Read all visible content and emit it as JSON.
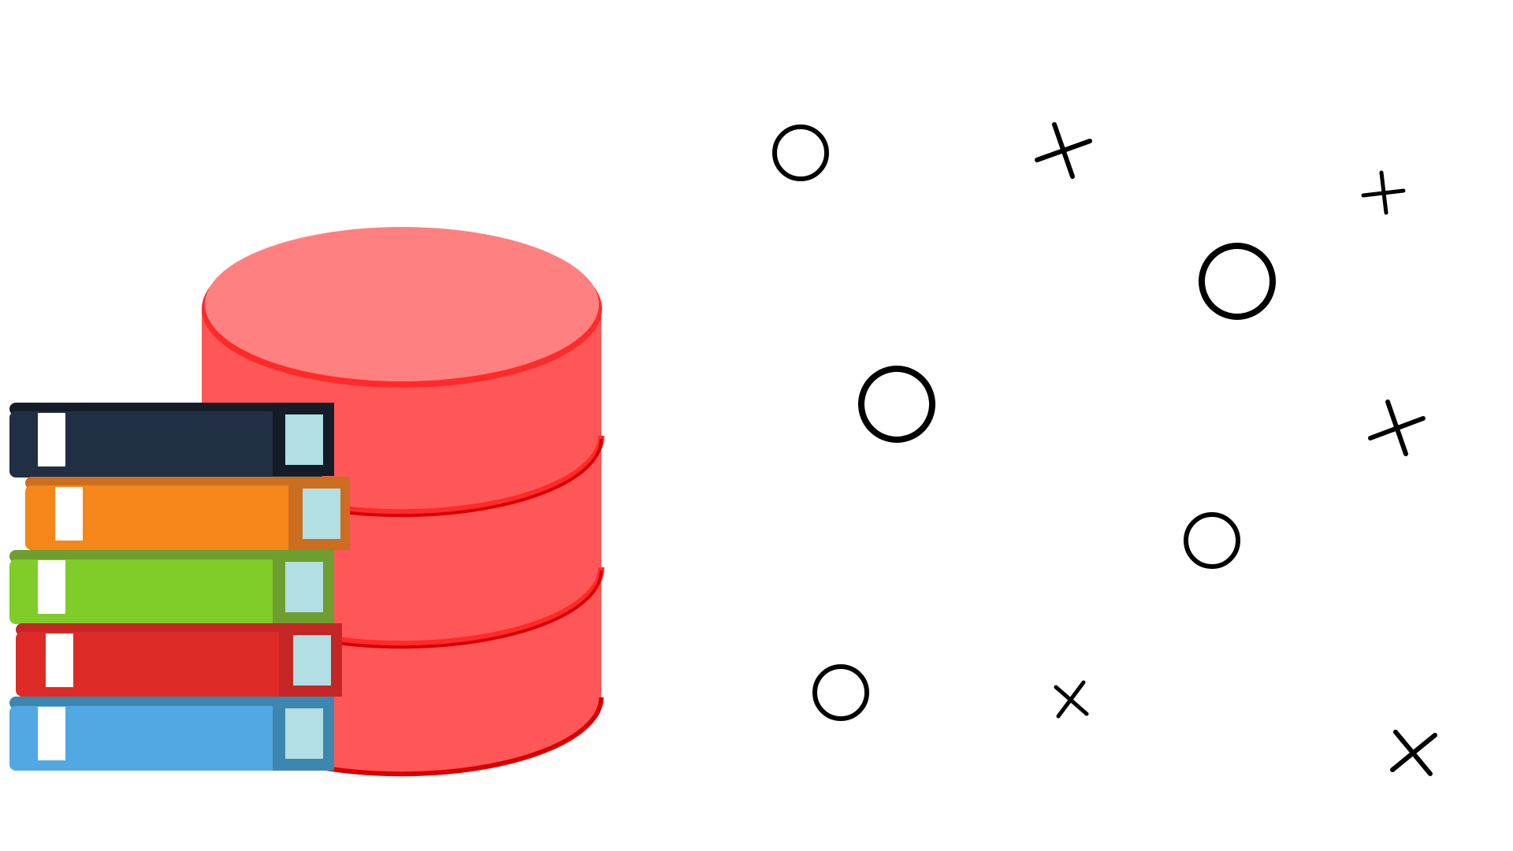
{
  "illustration": {
    "icons": {
      "database": "database-icon",
      "books": "book-stack-icon",
      "circle": "circle-mark-icon",
      "cross": "cross-mark-icon"
    },
    "colors": {
      "background": "#ffffff",
      "db_body": "#ff5757",
      "db_top": "#ff8080",
      "db_rim": "#ff2a2a",
      "db_shadow": "#d90000",
      "mark_stroke": "#000000",
      "page_tab": "#b1dfe3",
      "label": "#ffffff",
      "books": [
        {
          "name": "navy",
          "cover": "#212f44",
          "spine": "#141c28"
        },
        {
          "name": "orange",
          "cover": "#f58619",
          "spine": "#cc6e1f"
        },
        {
          "name": "green",
          "cover": "#80cc29",
          "spine": "#6e9e30"
        },
        {
          "name": "red",
          "cover": "#de2a26",
          "spine": "#c42626"
        },
        {
          "name": "blue",
          "cover": "#52a8e3",
          "spine": "#3c87b0"
        }
      ]
    }
  }
}
